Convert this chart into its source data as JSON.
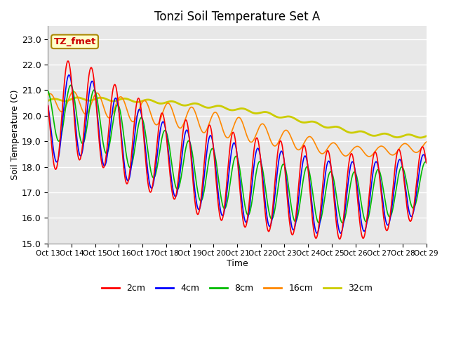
{
  "title": "Tonzi Soil Temperature Set A",
  "xlabel": "Time",
  "ylabel": "Soil Temperature (C)",
  "ylim": [
    15.0,
    23.5
  ],
  "yticks": [
    15.0,
    16.0,
    17.0,
    18.0,
    19.0,
    20.0,
    21.0,
    22.0,
    23.0
  ],
  "bg_color": "#e8e8e8",
  "grid_color": "white",
  "annotation_text": "TZ_fmet",
  "annotation_bg": "#ffffcc",
  "annotation_border": "#aa8800",
  "annotation_text_color": "#cc0000",
  "legend_labels": [
    "2cm",
    "4cm",
    "8cm",
    "16cm",
    "32cm"
  ],
  "line_colors": [
    "#ff0000",
    "#0000ff",
    "#00bb00",
    "#ff8800",
    "#cccc00"
  ],
  "line_widths": [
    1.2,
    1.2,
    1.2,
    1.2,
    2.0
  ],
  "xtick_labels": [
    "Oct 13",
    "Oct 14",
    "Oct 15",
    "Oct 16",
    "Oct 17",
    "Oct 18",
    "Oct 19",
    "Oct 20",
    "Oct 21",
    "Oct 22",
    "Oct 23",
    "Oct 24",
    "Oct 25",
    "Oct 26",
    "Oct 27",
    "Oct 28",
    "Oct 29"
  ],
  "xtick_positions": [
    0,
    24,
    48,
    72,
    96,
    120,
    144,
    168,
    192,
    216,
    240,
    264,
    288,
    312,
    336,
    360,
    384
  ],
  "figsize": [
    6.4,
    4.8
  ],
  "dpi": 100
}
